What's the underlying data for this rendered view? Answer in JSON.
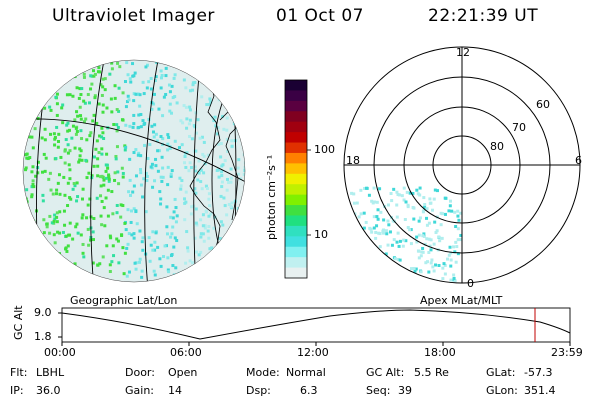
{
  "header": {
    "instrument": "Ultraviolet Imager",
    "date": "01 Oct 07",
    "time": "22:21:39 UT"
  },
  "colorbar": {
    "label": "photon cm⁻²s⁻¹",
    "ticks": [
      "100",
      "10"
    ],
    "colors": [
      "#1a0033",
      "#3a0044",
      "#5a0040",
      "#800020",
      "#a00010",
      "#c00000",
      "#e03000",
      "#ff8000",
      "#ffc000",
      "#f0f000",
      "#c0f000",
      "#80f000",
      "#40e040",
      "#20e080",
      "#30e0c0",
      "#40e0e0",
      "#80f0f0",
      "#c0f0f0",
      "#e8f0f0"
    ]
  },
  "polar_plot": {
    "mlt_labels": {
      "top": "12",
      "left": "18",
      "right": "6",
      "bottom": "0"
    },
    "lat_labels": [
      "60",
      "70",
      "80"
    ]
  },
  "map": {
    "left_label": "Geographic Lat/Lon",
    "right_label": "Apex MLat/MLT"
  },
  "timeline": {
    "ylabel": "GC Alt",
    "y_ticks": [
      "9.0",
      "1.8"
    ],
    "x_ticks": [
      "00:00",
      "06:00",
      "12:00",
      "18:00",
      "23:59"
    ],
    "marker_time": "22:21"
  },
  "info": {
    "flt_label": "Flt:",
    "flt_value": "LBHL",
    "ip_label": "IP:",
    "ip_value": "36.0",
    "door_label": "Door:",
    "door_value": "Open",
    "gain_label": "Gain:",
    "gain_value": "14",
    "mode_label": "Mode:",
    "mode_value": "Normal",
    "dsp_label": "Dsp:",
    "dsp_value": "6.3",
    "gcalt_label": "GC Alt:",
    "gcalt_value": "5.5 Re",
    "seq_label": "Seq:",
    "seq_value": "39",
    "glat_label": "GLat:",
    "glat_value": "-57.3",
    "glon_label": "GLon:",
    "glon_value": "351.4"
  }
}
